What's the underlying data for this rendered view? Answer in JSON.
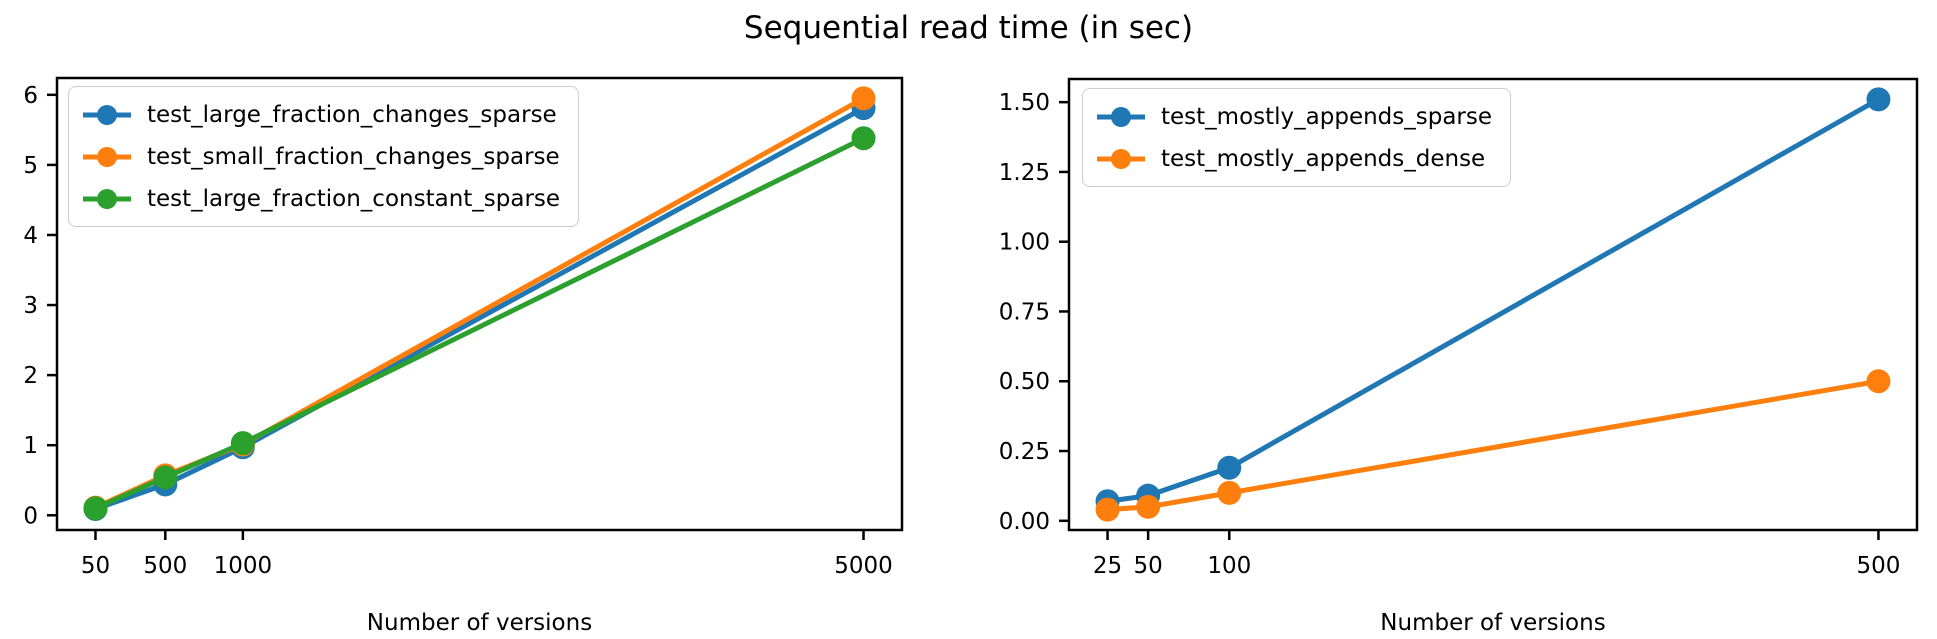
{
  "figure": {
    "title": "Sequential read time (in sec)",
    "background": "#ffffff",
    "text_color": "#000000",
    "axis_color": "#000000"
  },
  "chart_data": [
    {
      "type": "line",
      "title": "",
      "xlabel": "Number of versions",
      "ylabel": "",
      "x": [
        50,
        500,
        1000,
        5000
      ],
      "xtick_labels": [
        "50",
        "500",
        "1000",
        "5000"
      ],
      "yticks": [
        0,
        1,
        2,
        3,
        4,
        5,
        6
      ],
      "ytick_labels": [
        "0",
        "1",
        "2",
        "3",
        "4",
        "5",
        "6"
      ],
      "xlim": [
        -198,
        5248
      ],
      "ylim": [
        -0.21,
        6.24
      ],
      "grid": false,
      "legend_position": "upper left",
      "marker": "o",
      "series": [
        {
          "name": "test_large_fraction_changes_sparse",
          "color": "#1f77b4",
          "values": [
            0.09,
            0.44,
            0.97,
            5.81
          ]
        },
        {
          "name": "test_small_fraction_changes_sparse",
          "color": "#ff7f0e",
          "values": [
            0.11,
            0.57,
            1.01,
            5.95
          ]
        },
        {
          "name": "test_large_fraction_constant_sparse",
          "color": "#2ca02c",
          "values": [
            0.1,
            0.54,
            1.03,
            5.38
          ]
        }
      ]
    },
    {
      "type": "line",
      "title": "",
      "xlabel": "Number of versions",
      "ylabel": "",
      "x": [
        25,
        50,
        100,
        500
      ],
      "xtick_labels": [
        "25",
        "50",
        "100",
        "500"
      ],
      "yticks": [
        0.0,
        0.25,
        0.5,
        0.75,
        1.0,
        1.25,
        1.5
      ],
      "ytick_labels": [
        "0.00",
        "0.25",
        "0.50",
        "0.75",
        "1.00",
        "1.25",
        "1.50"
      ],
      "xlim": [
        1.25,
        523.75
      ],
      "ylim": [
        -0.033,
        1.583
      ],
      "grid": false,
      "legend_position": "upper left",
      "marker": "o",
      "series": [
        {
          "name": "test_mostly_appends_sparse",
          "color": "#1f77b4",
          "values": [
            0.07,
            0.09,
            0.19,
            1.51
          ]
        },
        {
          "name": "test_mostly_appends_dense",
          "color": "#ff7f0e",
          "values": [
            0.04,
            0.05,
            0.1,
            0.5
          ]
        }
      ]
    }
  ]
}
